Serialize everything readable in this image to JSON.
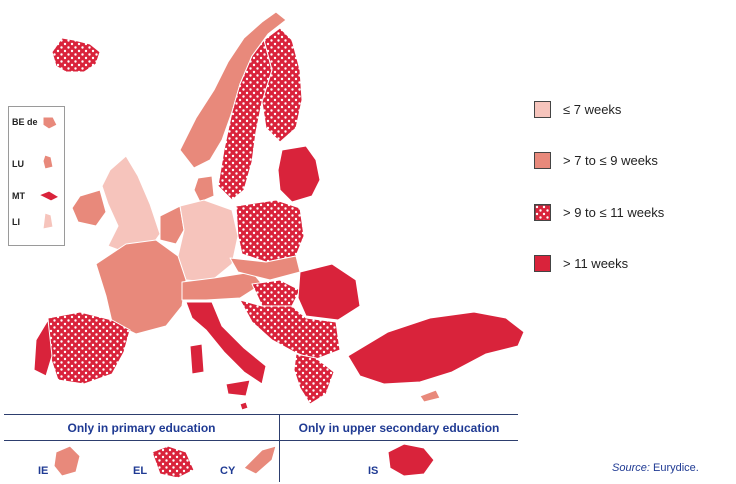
{
  "legend": [
    {
      "label": "≤ 7 weeks",
      "color": "#f6c4bc",
      "pattern": false
    },
    {
      "label": "> 7 to ≤ 9 weeks",
      "color": "#e8897b",
      "pattern": false
    },
    {
      "label": "> 9 to ≤ 11 weeks",
      "color": "#d9233b",
      "pattern": true
    },
    {
      "label": "> 11 weeks",
      "color": "#d9233b",
      "pattern": false
    }
  ],
  "insets": [
    "BE de",
    "LU",
    "MT",
    "LI"
  ],
  "sections": {
    "primary": "Only in primary education",
    "upper_secondary": "Only in upper secondary education"
  },
  "mini_maps": [
    "IE",
    "EL",
    "CY",
    "IS"
  ],
  "source": {
    "prefix": "Source:",
    "name": "Eurydice."
  }
}
